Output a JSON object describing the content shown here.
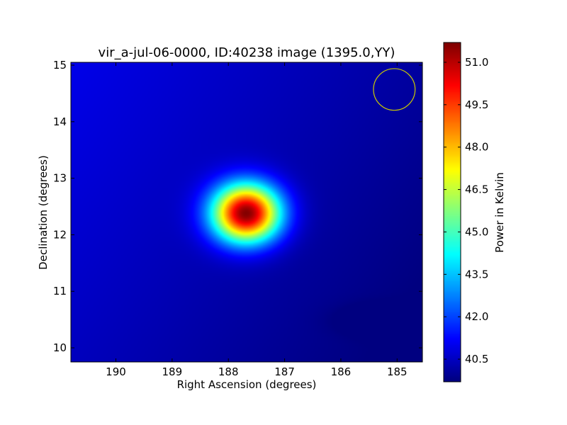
{
  "chart_data": {
    "type": "heatmap",
    "title": "vir_a-jul-06-0000, ID:40238 image (1395.0,YY)",
    "xlabel": "Right Ascension (degrees)",
    "ylabel": "Declination (degrees)",
    "colorbar_label": "Power in Kelvin",
    "x_axis_reversed": true,
    "xlim": [
      190.8,
      184.55
    ],
    "ylim": [
      9.75,
      15.05
    ],
    "x_ticks": [
      {
        "v": 190,
        "label": "190"
      },
      {
        "v": 189,
        "label": "189"
      },
      {
        "v": 188,
        "label": "188"
      },
      {
        "v": 187,
        "label": "187"
      },
      {
        "v": 186,
        "label": "186"
      },
      {
        "v": 185,
        "label": "185"
      }
    ],
    "y_ticks": [
      {
        "v": 10,
        "label": "10"
      },
      {
        "v": 11,
        "label": "11"
      },
      {
        "v": 12,
        "label": "12"
      },
      {
        "v": 13,
        "label": "13"
      },
      {
        "v": 14,
        "label": "14"
      },
      {
        "v": 15,
        "label": "15"
      }
    ],
    "color_range": [
      39.7,
      51.7
    ],
    "colorbar_ticks": [
      {
        "v": 40.5,
        "label": "40.5"
      },
      {
        "v": 42.0,
        "label": "42.0"
      },
      {
        "v": 43.5,
        "label": "43.5"
      },
      {
        "v": 45.0,
        "label": "45.0"
      },
      {
        "v": 46.5,
        "label": "46.5"
      },
      {
        "v": 48.0,
        "label": "48.0"
      },
      {
        "v": 49.5,
        "label": "49.5"
      },
      {
        "v": 51.0,
        "label": "51.0"
      }
    ],
    "colormap": "jet",
    "background_level": 40.3,
    "sources": [
      {
        "ra": 187.68,
        "dec": 12.38,
        "peak": 51.7,
        "sigma_ra": 0.42,
        "sigma_dec": 0.36
      },
      {
        "ra": 185.45,
        "dec": 10.5,
        "peak": 39.8,
        "sigma_ra": 0.45,
        "sigma_dec": 0.18
      }
    ],
    "beam_marker": {
      "ra": 185.05,
      "dec": 14.57,
      "radius_deg": 0.37,
      "color": "#cccc00"
    },
    "grid": false,
    "legend": "none"
  }
}
